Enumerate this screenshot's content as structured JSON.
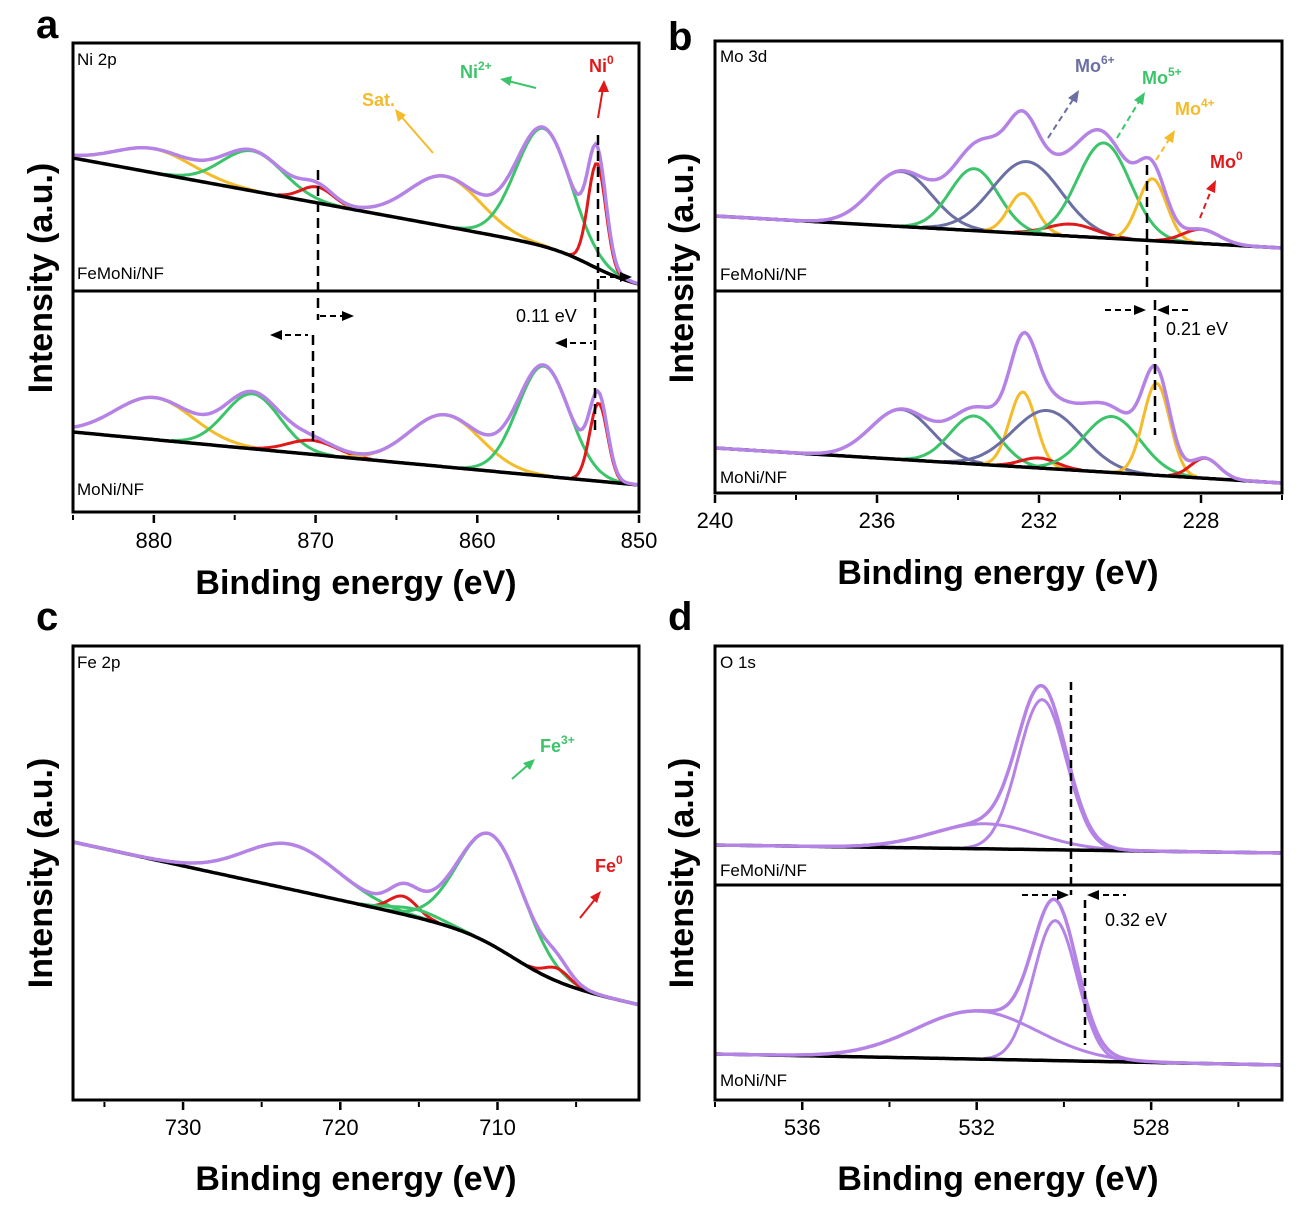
{
  "chart_data": [
    {
      "panel": "a",
      "type": "line",
      "title": "Ni 2p",
      "xlabel": "Binding energy (eV)",
      "ylabel": "Intensity (a.u.)",
      "xlim": [
        885,
        850
      ],
      "xticks": [
        880,
        870,
        860,
        850
      ],
      "samples": [
        "FeMoNi/NF",
        "MoNi/NF"
      ],
      "series": [
        {
          "name": "Ni0",
          "color": "#e0191b",
          "peaks_eV": [
            852.6,
            869.9
          ]
        },
        {
          "name": "Ni2+",
          "color": "#3cc46b",
          "peaks_eV": [
            855.9,
            873.9
          ]
        },
        {
          "name": "Sat.",
          "color": "#f4bb2a",
          "peaks_eV": [
            862.0,
            880.0
          ]
        }
      ],
      "annotations": [
        "Ni0",
        "Ni2+",
        "Sat.",
        "0.11 eV"
      ],
      "shift_eV": 0.11
    },
    {
      "panel": "b",
      "type": "line",
      "title": "Mo 3d",
      "xlabel": "Binding energy (eV)",
      "ylabel": "Intensity (a.u.)",
      "xlim": [
        240,
        226
      ],
      "xticks": [
        240,
        236,
        232,
        228
      ],
      "samples": [
        "FeMoNi/NF",
        "MoNi/NF"
      ],
      "series": [
        {
          "name": "Mo6+",
          "color": "#6c6fa3",
          "peaks_eV": [
            232.3,
            235.4
          ]
        },
        {
          "name": "Mo5+",
          "color": "#3cc46b",
          "peaks_eV": [
            230.4,
            233.6
          ]
        },
        {
          "name": "Mo4+",
          "color": "#f4bb2a",
          "peaks_eV": [
            229.2,
            232.4
          ]
        },
        {
          "name": "Mo0",
          "color": "#e0191b",
          "peaks_eV": [
            228.0,
            231.2
          ]
        }
      ],
      "annotations": [
        "Mo6+",
        "Mo5+",
        "Mo4+",
        "Mo0",
        "0.21 eV"
      ],
      "shift_eV": 0.21
    },
    {
      "panel": "c",
      "type": "line",
      "title": "Fe 2p",
      "xlabel": "Binding energy (eV)",
      "ylabel": "Intensity (a.u.)",
      "xlim": [
        737,
        701
      ],
      "xticks": [
        730,
        720,
        710
      ],
      "samples": [
        "FeMoNi/NF"
      ],
      "series": [
        {
          "name": "Fe3+",
          "color": "#3cc46b",
          "peaks_eV": [
            710.4,
            723.1
          ]
        },
        {
          "name": "Fe0",
          "color": "#e0191b",
          "peaks_eV": [
            706.2,
            716.0
          ]
        }
      ],
      "annotations": [
        "Fe3+",
        "Fe0"
      ]
    },
    {
      "panel": "d",
      "type": "line",
      "title": "O 1s",
      "xlabel": "Binding energy (eV)",
      "ylabel": "Intensity (a.u.)",
      "xlim": [
        538,
        525
      ],
      "xticks": [
        536,
        532,
        528
      ],
      "samples": [
        "FeMoNi/NF",
        "MoNi/NF"
      ],
      "series": [
        {
          "name": "FeMoNi/NF",
          "color": "#b583e6",
          "peak_eV": 530.5
        },
        {
          "name": "MoNi/NF",
          "color": "#b583e6",
          "peak_eV": 530.2
        }
      ],
      "annotations": [
        "0.32 eV"
      ],
      "shift_eV": 0.32
    }
  ],
  "panels": {
    "a": {
      "letter": "a",
      "title": "Ni 2p",
      "top_sample": "FeMoNi/NF",
      "bottom_sample": "MoNi/NF",
      "ticks": [
        "880",
        "870",
        "860",
        "850"
      ],
      "xlabel": "Binding energy (eV)",
      "ylabel": "Intensity (a.u.)",
      "lbl_ni0": "Ni",
      "sup_ni0": "0",
      "lbl_ni2": "Ni",
      "sup_ni2": "2+",
      "lbl_sat": "Sat.",
      "shift": "0.11 eV"
    },
    "b": {
      "letter": "b",
      "title": "Mo 3d",
      "top_sample": "FeMoNi/NF",
      "bottom_sample": "MoNi/NF",
      "ticks": [
        "240",
        "236",
        "232",
        "228"
      ],
      "xlabel": "Binding energy (eV)",
      "ylabel": "Intensity (a.u.)",
      "lbl_mo": "Mo",
      "sup_mo6": "6+",
      "sup_mo5": "5+",
      "sup_mo4": "4+",
      "sup_mo0": "0",
      "shift": "0.21 eV"
    },
    "c": {
      "letter": "c",
      "title": "Fe 2p",
      "ticks": [
        "730",
        "720",
        "710"
      ],
      "xlabel": "Binding energy (eV)",
      "ylabel": "Intensity (a.u.)",
      "lbl_fe": "Fe",
      "sup_fe3": "3+",
      "sup_fe0": "0"
    },
    "d": {
      "letter": "d",
      "title": "O 1s",
      "top_sample": "FeMoNi/NF",
      "bottom_sample": "MoNi/NF",
      "ticks": [
        "536",
        "532",
        "528"
      ],
      "xlabel": "Binding energy (eV)",
      "ylabel": "Intensity (a.u.)",
      "shift": "0.32 eV"
    }
  },
  "colors": {
    "envelope": "#b583e6",
    "background": "#000000",
    "red": "#e0191b",
    "green": "#3cc46b",
    "yellow": "#f4bb2a",
    "slate": "#6c6fa3"
  }
}
